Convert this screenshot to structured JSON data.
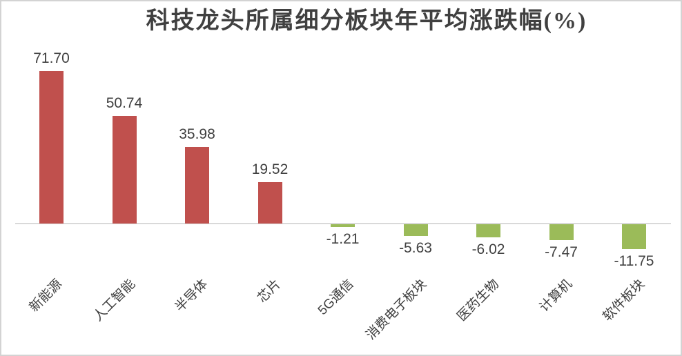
{
  "chart_data": {
    "type": "bar",
    "title": "科技龙头所属细分板块年平均涨跌幅(%)",
    "categories": [
      "新能源",
      "人工智能",
      "半导体",
      "芯片",
      "5G通信",
      "消费电子板块",
      "医药生物",
      "计算机",
      "软件板块"
    ],
    "values": [
      71.7,
      50.74,
      35.98,
      19.52,
      -1.21,
      -5.63,
      -6.02,
      -7.47,
      -11.75
    ],
    "value_labels": [
      "71.70",
      "50.74",
      "35.98",
      "19.52",
      "-1.21",
      "-5.63",
      "-6.02",
      "-7.47",
      "-11.75"
    ],
    "xlabel": "",
    "ylabel": "",
    "ylim": [
      -20,
      80
    ],
    "gridlines": false,
    "legend": "none",
    "data_labels": "outside-end",
    "category_label_rotation_deg": 45,
    "colors": {
      "positive_bar": "#C0504D",
      "negative_bar": "#9BBB59",
      "axis_line": "#D9D9D9",
      "text": "#404040",
      "frame_border": "#D3D3D3",
      "background": "#FFFFFF"
    }
  }
}
